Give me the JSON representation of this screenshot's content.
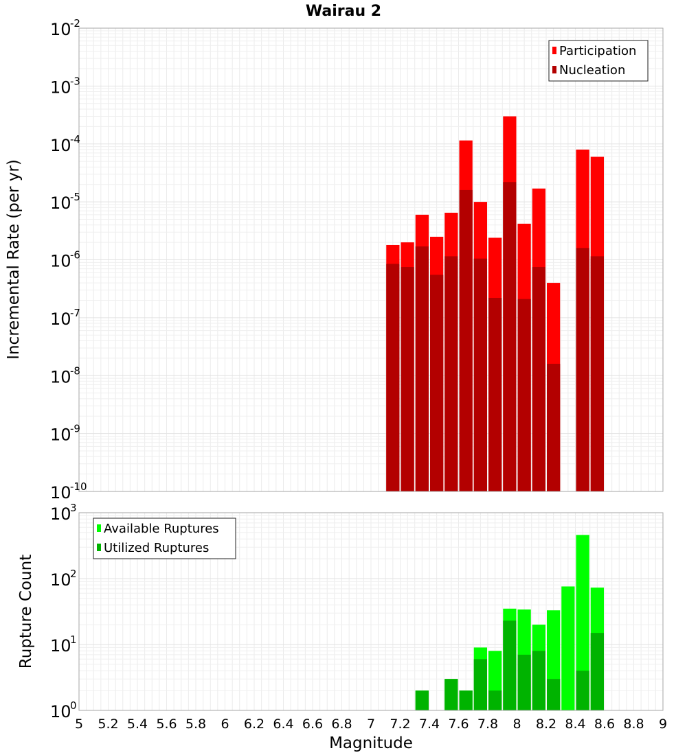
{
  "chart_data": {
    "title": "Wairau 2",
    "xlabel": "Magnitude",
    "x_ticks": [
      "5",
      "5.2",
      "5.4",
      "5.6",
      "5.8",
      "6",
      "6.2",
      "6.4",
      "6.6",
      "6.8",
      "7",
      "7.2",
      "7.4",
      "7.6",
      "7.8",
      "8",
      "8.2",
      "8.4",
      "8.6",
      "8.8",
      "9"
    ],
    "xlim": [
      5,
      9
    ],
    "bin_width": 0.1,
    "grid": true,
    "panels": [
      {
        "type": "bar",
        "ylabel": "Incremental Rate (per yr)",
        "yscale": "log",
        "ylim_exponents": [
          -10,
          -2
        ],
        "legend_position": "top-right",
        "overlay": true,
        "series": [
          {
            "name": "Participation",
            "color": "#ff0000",
            "x": [
              7.15,
              7.25,
              7.35,
              7.45,
              7.55,
              7.65,
              7.75,
              7.85,
              7.95,
              8.05,
              8.15,
              8.25,
              8.45,
              8.55
            ],
            "values": [
              1.8e-06,
              2e-06,
              6e-06,
              2.5e-06,
              6.5e-06,
              0.000115,
              1e-05,
              2.4e-06,
              0.0003,
              4.2e-06,
              1.7e-05,
              4e-07,
              8e-05,
              6e-05
            ]
          },
          {
            "name": "Nucleation",
            "color": "#b30000",
            "x": [
              7.15,
              7.25,
              7.35,
              7.45,
              7.55,
              7.65,
              7.75,
              7.85,
              7.95,
              8.05,
              8.15,
              8.25,
              8.45,
              8.55
            ],
            "values": [
              8.5e-07,
              7.5e-07,
              1.7e-06,
              5.5e-07,
              1.15e-06,
              1.6e-05,
              1.05e-06,
              2.2e-07,
              2.2e-05,
              2.1e-07,
              7.5e-07,
              1.6e-08,
              1.6e-06,
              1.15e-06
            ]
          }
        ]
      },
      {
        "type": "bar",
        "ylabel": "Rupture Count",
        "yscale": "log",
        "ylim_exponents": [
          0,
          3
        ],
        "legend_position": "top-left",
        "overlay": true,
        "series": [
          {
            "name": "Available Ruptures",
            "color": "#00ff00",
            "x": [
              6.75,
              7.15,
              7.25,
              7.35,
              7.45,
              7.55,
              7.65,
              7.75,
              7.85,
              7.95,
              8.05,
              8.15,
              8.25,
              8.35,
              8.45,
              8.55
            ],
            "values": [
              1,
              1,
              1,
              2,
              1,
              3,
              2,
              9,
              8,
              35,
              34,
              20,
              33,
              76,
              460,
              73
            ]
          },
          {
            "name": "Utilized Ruptures",
            "color": "#00b300",
            "x": [
              7.15,
              7.25,
              7.35,
              7.45,
              7.55,
              7.65,
              7.75,
              7.85,
              7.95,
              8.05,
              8.15,
              8.25,
              8.45,
              8.55
            ],
            "values": [
              1,
              1,
              2,
              1,
              3,
              2,
              6,
              2,
              23,
              7,
              8,
              3,
              4,
              15
            ]
          }
        ]
      }
    ]
  }
}
